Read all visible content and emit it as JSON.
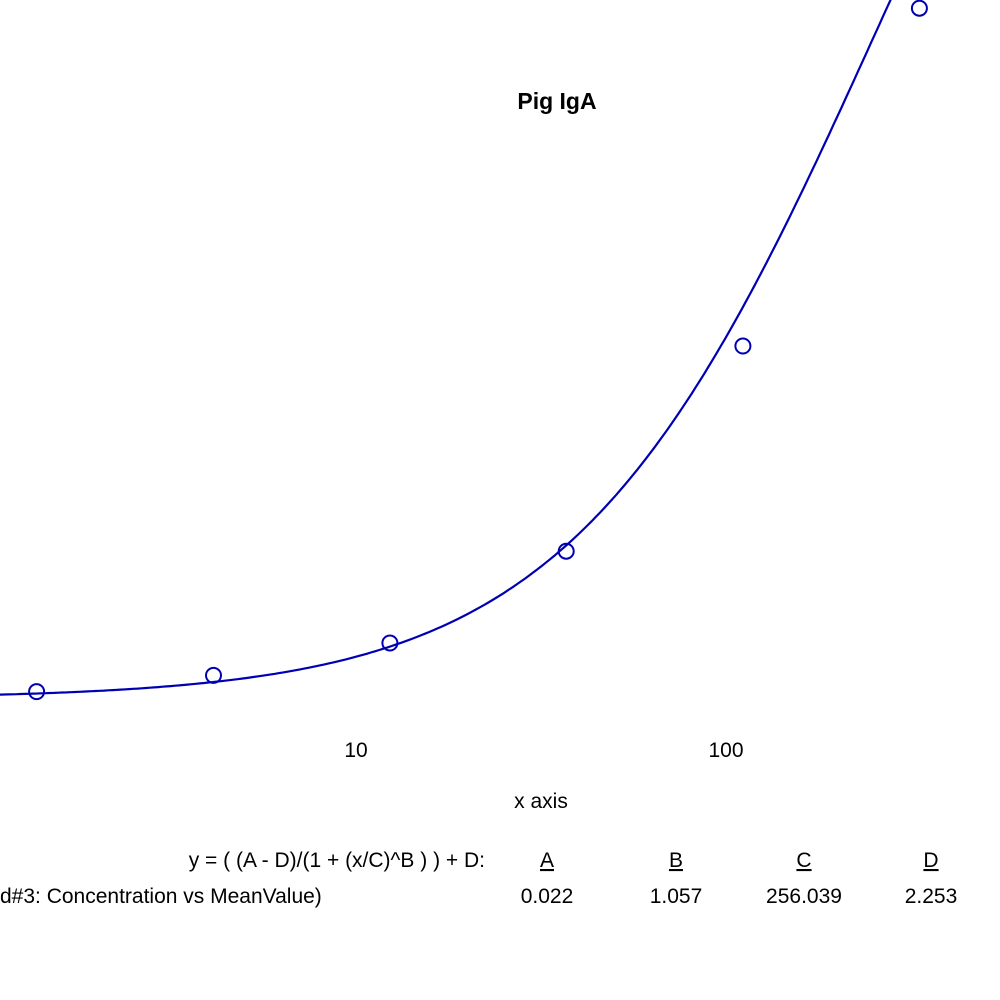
{
  "chart_data": {
    "type": "scatter",
    "title": "Pig IgA",
    "xlabel": "x axis",
    "ylabel": "",
    "x_scale": "log",
    "x_ticks": [
      {
        "value": 10,
        "label": "10"
      },
      {
        "value": 100,
        "label": "100"
      }
    ],
    "series": [
      {
        "points": [
          {
            "x": 1.37,
            "y": 0.034
          },
          {
            "x": 4.12,
            "y": 0.061
          },
          {
            "x": 12.35,
            "y": 0.115
          },
          {
            "x": 37.0,
            "y": 0.268
          },
          {
            "x": 111.1,
            "y": 0.61
          },
          {
            "x": 333.3,
            "y": 1.173
          }
        ],
        "fit": {
          "model": "4PL",
          "A": 0.022,
          "B": 1.057,
          "C": 256.039,
          "D": 2.253
        }
      }
    ],
    "fit_table": {
      "equation": "y = ( (A - D)/(1 + (x/C)^B ) ) + D:",
      "columns": [
        "A",
        "B",
        "C",
        "D"
      ],
      "row_label": "d#3: Concentration vs MeanValue)",
      "values": [
        "0.022",
        "1.057",
        "256.039",
        "2.253"
      ]
    },
    "colors": {
      "series": "#0000b3",
      "text": "#000000",
      "background": "#ffffff"
    }
  }
}
